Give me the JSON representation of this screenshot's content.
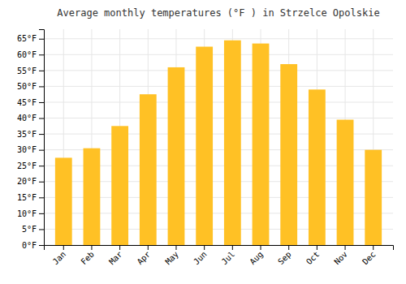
{
  "chart_data": {
    "type": "bar",
    "title": "Average monthly temperatures (°F ) in Strzelce Opolskie",
    "categories": [
      "Jan",
      "Feb",
      "Mar",
      "Apr",
      "May",
      "Jun",
      "Jul",
      "Aug",
      "Sep",
      "Oct",
      "Nov",
      "Dec"
    ],
    "values": [
      27.5,
      30.5,
      37.5,
      47.5,
      56.0,
      62.5,
      64.5,
      63.5,
      57.0,
      49.0,
      39.5,
      30.0
    ],
    "color": "#FFC125",
    "ylim": [
      0,
      68
    ],
    "yticks": [
      {
        "value": 0,
        "label": "0°F"
      },
      {
        "value": 5,
        "label": "5°F"
      },
      {
        "value": 10,
        "label": "10°F"
      },
      {
        "value": 15,
        "label": "15°F"
      },
      {
        "value": 20,
        "label": "20°F"
      },
      {
        "value": 25,
        "label": "25°F"
      },
      {
        "value": 30,
        "label": "30°F"
      },
      {
        "value": 35,
        "label": "35°F"
      },
      {
        "value": 40,
        "label": "40°F"
      },
      {
        "value": 45,
        "label": "45°F"
      },
      {
        "value": 50,
        "label": "50°F"
      },
      {
        "value": 55,
        "label": "55°F"
      },
      {
        "value": 60,
        "label": "60°F"
      },
      {
        "value": 65,
        "label": "65°F"
      }
    ],
    "grid": true
  }
}
